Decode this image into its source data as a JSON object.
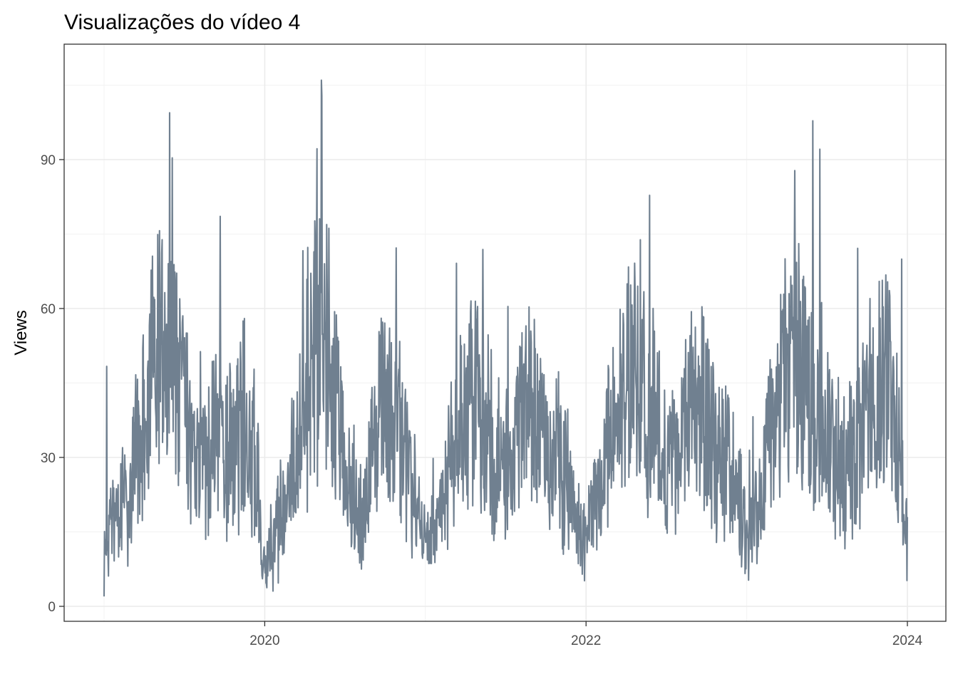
{
  "chart_data": {
    "type": "line",
    "title": "Visualizações do vídeo 4",
    "xlabel": "",
    "ylabel": "Views",
    "x_ticks": [
      {
        "label": "2020",
        "value": 2020.0
      },
      {
        "label": "2022",
        "value": 2022.0
      },
      {
        "label": "2024",
        "value": 2024.0
      }
    ],
    "y_ticks": [
      {
        "label": "0",
        "value": 0
      },
      {
        "label": "30",
        "value": 30
      },
      {
        "label": "60",
        "value": 60
      },
      {
        "label": "90",
        "value": 90
      }
    ],
    "xlim": [
      2019.0,
      2024.0
    ],
    "ylim": [
      0,
      108
    ],
    "grid": true,
    "line_color": "#708090",
    "series": [
      {
        "values_note": "",
        "x": [
          2019.0,
          2019.05,
          2019.1,
          2019.15,
          2019.2,
          2019.25,
          2019.3,
          2019.35,
          2019.4,
          2019.45,
          2019.5,
          2019.55,
          2019.6,
          2019.65,
          2019.7,
          2019.75,
          2019.8,
          2019.85,
          2019.9,
          2019.95,
          2020.0,
          2020.05,
          2020.1,
          2020.15,
          2020.2,
          2020.25,
          2020.3,
          2020.35,
          2020.4,
          2020.45,
          2020.5,
          2020.55,
          2020.6,
          2020.65,
          2020.7,
          2020.75,
          2020.8,
          2020.85,
          2020.9,
          2020.95,
          2021.0,
          2021.05,
          2021.1,
          2021.15,
          2021.2,
          2021.25,
          2021.3,
          2021.35,
          2021.4,
          2021.45,
          2021.5,
          2021.55,
          2021.6,
          2021.65,
          2021.7,
          2021.75,
          2021.8,
          2021.85,
          2021.9,
          2021.95,
          2022.0,
          2022.05,
          2022.1,
          2022.15,
          2022.2,
          2022.25,
          2022.3,
          2022.35,
          2022.4,
          2022.45,
          2022.5,
          2022.55,
          2022.6,
          2022.65,
          2022.7,
          2022.75,
          2022.8,
          2022.85,
          2022.9,
          2022.95,
          2023.0,
          2023.05,
          2023.1,
          2023.15,
          2023.2,
          2023.25,
          2023.3,
          2023.35,
          2023.4,
          2023.45,
          2023.5,
          2023.55,
          2023.6,
          2023.65,
          2023.7,
          2023.75,
          2023.8,
          2023.85,
          2023.9,
          2023.95,
          2024.0
        ],
        "y": [
          10,
          16,
          18,
          24,
          30,
          38,
          46,
          52,
          50,
          46,
          38,
          28,
          26,
          30,
          34,
          32,
          30,
          36,
          40,
          28,
          8,
          12,
          18,
          24,
          32,
          44,
          50,
          54,
          48,
          38,
          28,
          22,
          20,
          28,
          36,
          38,
          36,
          34,
          28,
          18,
          12,
          14,
          20,
          26,
          34,
          40,
          42,
          40,
          36,
          30,
          28,
          32,
          38,
          40,
          38,
          34,
          30,
          28,
          24,
          18,
          14,
          20,
          26,
          32,
          38,
          44,
          46,
          48,
          40,
          34,
          30,
          28,
          34,
          38,
          40,
          38,
          36,
          30,
          28,
          22,
          12,
          16,
          24,
          32,
          40,
          46,
          50,
          48,
          44,
          40,
          36,
          30,
          28,
          32,
          36,
          40,
          42,
          44,
          40,
          30,
          14
        ]
      }
    ]
  }
}
